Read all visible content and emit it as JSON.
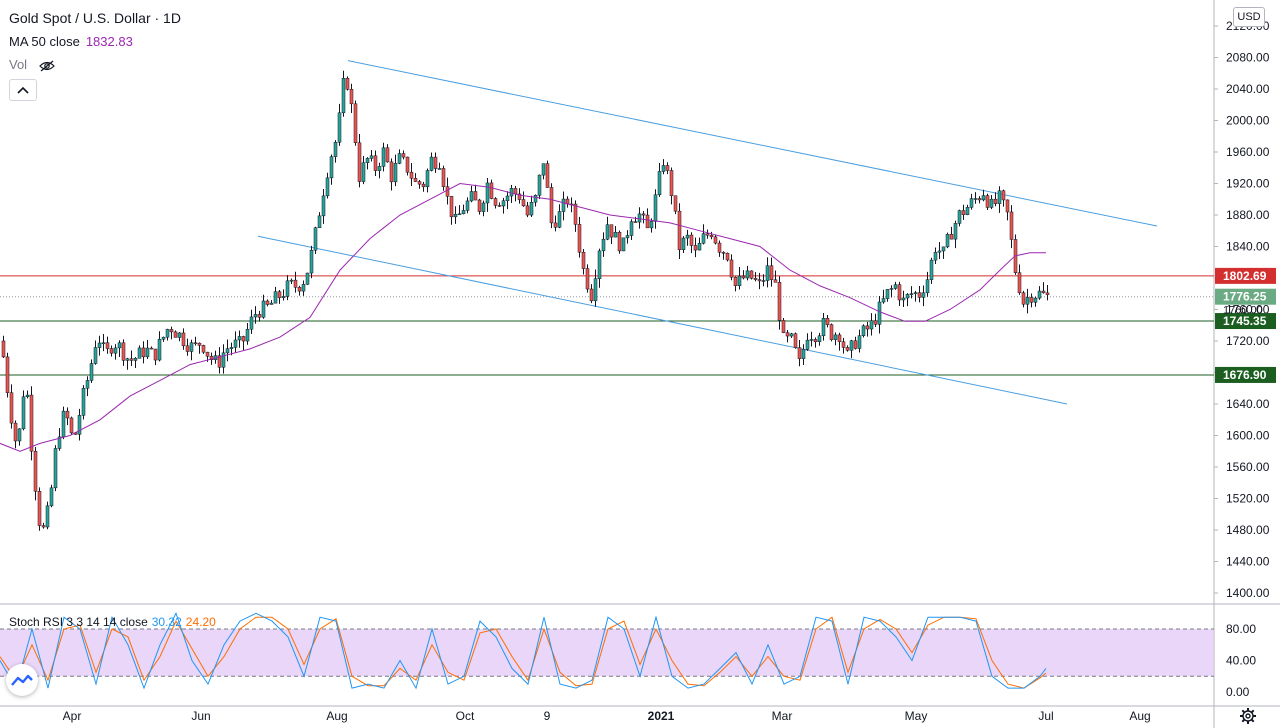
{
  "header": {
    "symbol_title": "Gold Spot / U.S. Dollar · 1D",
    "ma_label": "MA 50 close",
    "ma_value": "1832.83",
    "vol_label": "Vol",
    "currency": "USD"
  },
  "oscillator": {
    "label": "Stoch RSI 3 3 14 14 close",
    "k_value": "30.32",
    "d_value": "24.20"
  },
  "colors": {
    "up": "#26a69a",
    "down": "#ef5350",
    "ma": "#9c27b0",
    "trend": "#4a9ee0",
    "resistance": "#d32f2f",
    "support": "#1b5e20",
    "current": "#6aab84",
    "stoch_k": "#2196f3",
    "stoch_d": "#ff6d00",
    "stoch_band": "#e1c8f5"
  },
  "chart_data": {
    "type": "candlestick",
    "y_ticks": [
      "2120.00",
      "2080.00",
      "2040.00",
      "2000.00",
      "1960.00",
      "1920.00",
      "1880.00",
      "1840.00",
      "1800.00",
      "1760.00",
      "1720.00",
      "1680.00",
      "1640.00",
      "1600.00",
      "1560.00",
      "1520.00",
      "1480.00",
      "1440.00",
      "1400.00"
    ],
    "x_ticks": [
      "Apr",
      "Jun",
      "Aug",
      "Oct",
      "9",
      "2021",
      "Mar",
      "May",
      "Jul",
      "Aug"
    ],
    "ylim": [
      1393,
      2135
    ],
    "price_levels": [
      {
        "label": "1802.69",
        "value": 1802.69,
        "kind": "resistance"
      },
      {
        "label": "1745.35",
        "value": 1745.35,
        "kind": "support"
      },
      {
        "label": "1676.90",
        "value": 1676.9,
        "kind": "support"
      }
    ],
    "current_price": {
      "label": "1776.25",
      "value": 1776.25
    },
    "countdown_label": "1760.00",
    "close_path": [
      [
        0,
        1720
      ],
      [
        8,
        1640
      ],
      [
        16,
        1580
      ],
      [
        24,
        1680
      ],
      [
        32,
        1560
      ],
      [
        40,
        1470
      ],
      [
        48,
        1510
      ],
      [
        56,
        1600
      ],
      [
        64,
        1630
      ],
      [
        72,
        1590
      ],
      [
        80,
        1640
      ],
      [
        88,
        1680
      ],
      [
        96,
        1730
      ],
      [
        104,
        1700
      ],
      [
        112,
        1720
      ],
      [
        120,
        1710
      ],
      [
        128,
        1695
      ],
      [
        136,
        1700
      ],
      [
        144,
        1710
      ],
      [
        152,
        1700
      ],
      [
        160,
        1720
      ],
      [
        168,
        1740
      ],
      [
        176,
        1730
      ],
      [
        184,
        1720
      ],
      [
        192,
        1710
      ],
      [
        200,
        1720
      ],
      [
        208,
        1700
      ],
      [
        216,
        1690
      ],
      [
        224,
        1710
      ],
      [
        232,
        1715
      ],
      [
        240,
        1715
      ],
      [
        248,
        1740
      ],
      [
        256,
        1760
      ],
      [
        264,
        1760
      ],
      [
        272,
        1770
      ],
      [
        280,
        1780
      ],
      [
        288,
        1790
      ],
      [
        296,
        1790
      ],
      [
        304,
        1800
      ],
      [
        312,
        1840
      ],
      [
        320,
        1900
      ],
      [
        328,
        1950
      ],
      [
        336,
        1980
      ],
      [
        344,
        2065
      ],
      [
        352,
        2000
      ],
      [
        358,
        1930
      ],
      [
        366,
        1950
      ],
      [
        374,
        1940
      ],
      [
        382,
        1960
      ],
      [
        390,
        1930
      ],
      [
        398,
        1950
      ],
      [
        406,
        1940
      ],
      [
        414,
        1920
      ],
      [
        422,
        1920
      ],
      [
        430,
        1950
      ],
      [
        438,
        1950
      ],
      [
        446,
        1900
      ],
      [
        454,
        1870
      ],
      [
        462,
        1890
      ],
      [
        470,
        1900
      ],
      [
        478,
        1890
      ],
      [
        486,
        1920
      ],
      [
        494,
        1900
      ],
      [
        502,
        1900
      ],
      [
        510,
        1910
      ],
      [
        518,
        1905
      ],
      [
        526,
        1880
      ],
      [
        534,
        1900
      ],
      [
        542,
        1950
      ],
      [
        550,
        1870
      ],
      [
        558,
        1880
      ],
      [
        566,
        1900
      ],
      [
        574,
        1870
      ],
      [
        582,
        1810
      ],
      [
        590,
        1780
      ],
      [
        598,
        1840
      ],
      [
        606,
        1870
      ],
      [
        614,
        1850
      ],
      [
        622,
        1840
      ],
      [
        630,
        1880
      ],
      [
        638,
        1880
      ],
      [
        646,
        1860
      ],
      [
        654,
        1900
      ],
      [
        662,
        1950
      ],
      [
        670,
        1910
      ],
      [
        678,
        1840
      ],
      [
        686,
        1850
      ],
      [
        694,
        1830
      ],
      [
        702,
        1850
      ],
      [
        710,
        1860
      ],
      [
        718,
        1840
      ],
      [
        726,
        1830
      ],
      [
        734,
        1790
      ],
      [
        742,
        1800
      ],
      [
        750,
        1800
      ],
      [
        758,
        1790
      ],
      [
        766,
        1810
      ],
      [
        774,
        1790
      ],
      [
        782,
        1720
      ],
      [
        790,
        1720
      ],
      [
        798,
        1690
      ],
      [
        806,
        1730
      ],
      [
        814,
        1730
      ],
      [
        822,
        1740
      ],
      [
        830,
        1730
      ],
      [
        838,
        1730
      ],
      [
        846,
        1700
      ],
      [
        854,
        1720
      ],
      [
        862,
        1730
      ],
      [
        870,
        1740
      ],
      [
        878,
        1760
      ],
      [
        886,
        1780
      ],
      [
        894,
        1790
      ],
      [
        902,
        1770
      ],
      [
        910,
        1780
      ],
      [
        918,
        1780
      ],
      [
        926,
        1800
      ],
      [
        934,
        1840
      ],
      [
        942,
        1830
      ],
      [
        950,
        1860
      ],
      [
        958,
        1880
      ],
      [
        966,
        1890
      ],
      [
        974,
        1900
      ],
      [
        982,
        1910
      ],
      [
        990,
        1890
      ],
      [
        998,
        1900
      ],
      [
        1006,
        1880
      ],
      [
        1014,
        1810
      ],
      [
        1022,
        1770
      ],
      [
        1030,
        1780
      ],
      [
        1038,
        1780
      ],
      [
        1046,
        1776
      ]
    ],
    "ma_path": [
      [
        0,
        1590
      ],
      [
        20,
        1580
      ],
      [
        40,
        1590
      ],
      [
        70,
        1600
      ],
      [
        100,
        1620
      ],
      [
        130,
        1650
      ],
      [
        160,
        1670
      ],
      [
        190,
        1690
      ],
      [
        220,
        1700
      ],
      [
        250,
        1710
      ],
      [
        280,
        1725
      ],
      [
        310,
        1750
      ],
      [
        340,
        1810
      ],
      [
        370,
        1850
      ],
      [
        400,
        1880
      ],
      [
        430,
        1900
      ],
      [
        460,
        1920
      ],
      [
        490,
        1915
      ],
      [
        520,
        1905
      ],
      [
        550,
        1900
      ],
      [
        580,
        1890
      ],
      [
        610,
        1880
      ],
      [
        640,
        1875
      ],
      [
        670,
        1870
      ],
      [
        700,
        1860
      ],
      [
        730,
        1850
      ],
      [
        760,
        1840
      ],
      [
        790,
        1810
      ],
      [
        820,
        1790
      ],
      [
        850,
        1775
      ],
      [
        880,
        1757
      ],
      [
        905,
        1745
      ],
      [
        925,
        1745
      ],
      [
        950,
        1760
      ],
      [
        980,
        1785
      ],
      [
        1000,
        1810
      ],
      [
        1015,
        1828
      ],
      [
        1030,
        1832
      ],
      [
        1046,
        1832
      ]
    ],
    "trend_lines": [
      {
        "from": [
          348,
          2076
        ],
        "to": [
          1157,
          1866
        ]
      },
      {
        "from": [
          258,
          1853
        ],
        "to": [
          1067,
          1640
        ]
      }
    ],
    "stoch_rsi": {
      "ticks": [
        "80.00",
        "40.00",
        "0.00"
      ],
      "upper_band": 80,
      "lower_band": 20,
      "k": [
        [
          0,
          40
        ],
        [
          16,
          5
        ],
        [
          32,
          80
        ],
        [
          48,
          5
        ],
        [
          64,
          95
        ],
        [
          80,
          80
        ],
        [
          96,
          10
        ],
        [
          112,
          95
        ],
        [
          128,
          60
        ],
        [
          144,
          5
        ],
        [
          160,
          60
        ],
        [
          176,
          100
        ],
        [
          192,
          40
        ],
        [
          208,
          10
        ],
        [
          224,
          60
        ],
        [
          240,
          90
        ],
        [
          256,
          100
        ],
        [
          272,
          90
        ],
        [
          288,
          70
        ],
        [
          304,
          20
        ],
        [
          320,
          95
        ],
        [
          336,
          90
        ],
        [
          352,
          5
        ],
        [
          368,
          10
        ],
        [
          384,
          5
        ],
        [
          400,
          40
        ],
        [
          416,
          5
        ],
        [
          432,
          80
        ],
        [
          448,
          10
        ],
        [
          464,
          20
        ],
        [
          480,
          90
        ],
        [
          496,
          70
        ],
        [
          512,
          30
        ],
        [
          528,
          10
        ],
        [
          544,
          95
        ],
        [
          560,
          10
        ],
        [
          576,
          5
        ],
        [
          592,
          15
        ],
        [
          608,
          95
        ],
        [
          624,
          80
        ],
        [
          640,
          20
        ],
        [
          656,
          95
        ],
        [
          672,
          20
        ],
        [
          688,
          5
        ],
        [
          704,
          10
        ],
        [
          720,
          30
        ],
        [
          736,
          50
        ],
        [
          752,
          10
        ],
        [
          768,
          60
        ],
        [
          784,
          10
        ],
        [
          800,
          20
        ],
        [
          816,
          95
        ],
        [
          832,
          90
        ],
        [
          848,
          10
        ],
        [
          864,
          95
        ],
        [
          880,
          90
        ],
        [
          896,
          70
        ],
        [
          912,
          40
        ],
        [
          928,
          95
        ],
        [
          944,
          95
        ],
        [
          960,
          95
        ],
        [
          976,
          90
        ],
        [
          992,
          20
        ],
        [
          1008,
          5
        ],
        [
          1024,
          5
        ],
        [
          1040,
          20
        ],
        [
          1046,
          30
        ]
      ],
      "d": [
        [
          0,
          45
        ],
        [
          16,
          15
        ],
        [
          32,
          60
        ],
        [
          48,
          15
        ],
        [
          64,
          80
        ],
        [
          80,
          85
        ],
        [
          96,
          25
        ],
        [
          112,
          80
        ],
        [
          128,
          70
        ],
        [
          144,
          15
        ],
        [
          160,
          45
        ],
        [
          176,
          90
        ],
        [
          192,
          55
        ],
        [
          208,
          20
        ],
        [
          224,
          45
        ],
        [
          240,
          80
        ],
        [
          256,
          95
        ],
        [
          272,
          95
        ],
        [
          288,
          80
        ],
        [
          304,
          35
        ],
        [
          320,
          80
        ],
        [
          336,
          93
        ],
        [
          352,
          20
        ],
        [
          368,
          8
        ],
        [
          384,
          8
        ],
        [
          400,
          30
        ],
        [
          416,
          15
        ],
        [
          432,
          60
        ],
        [
          448,
          25
        ],
        [
          464,
          15
        ],
        [
          480,
          75
        ],
        [
          496,
          80
        ],
        [
          512,
          45
        ],
        [
          528,
          15
        ],
        [
          544,
          80
        ],
        [
          560,
          25
        ],
        [
          576,
          8
        ],
        [
          592,
          10
        ],
        [
          608,
          80
        ],
        [
          624,
          90
        ],
        [
          640,
          35
        ],
        [
          656,
          80
        ],
        [
          672,
          40
        ],
        [
          688,
          10
        ],
        [
          704,
          8
        ],
        [
          720,
          25
        ],
        [
          736,
          45
        ],
        [
          752,
          20
        ],
        [
          768,
          45
        ],
        [
          784,
          20
        ],
        [
          800,
          15
        ],
        [
          816,
          80
        ],
        [
          832,
          95
        ],
        [
          848,
          25
        ],
        [
          864,
          80
        ],
        [
          880,
          92
        ],
        [
          896,
          80
        ],
        [
          912,
          50
        ],
        [
          928,
          85
        ],
        [
          944,
          95
        ],
        [
          960,
          95
        ],
        [
          976,
          93
        ],
        [
          992,
          40
        ],
        [
          1008,
          10
        ],
        [
          1024,
          5
        ],
        [
          1040,
          18
        ],
        [
          1046,
          24
        ]
      ]
    }
  }
}
